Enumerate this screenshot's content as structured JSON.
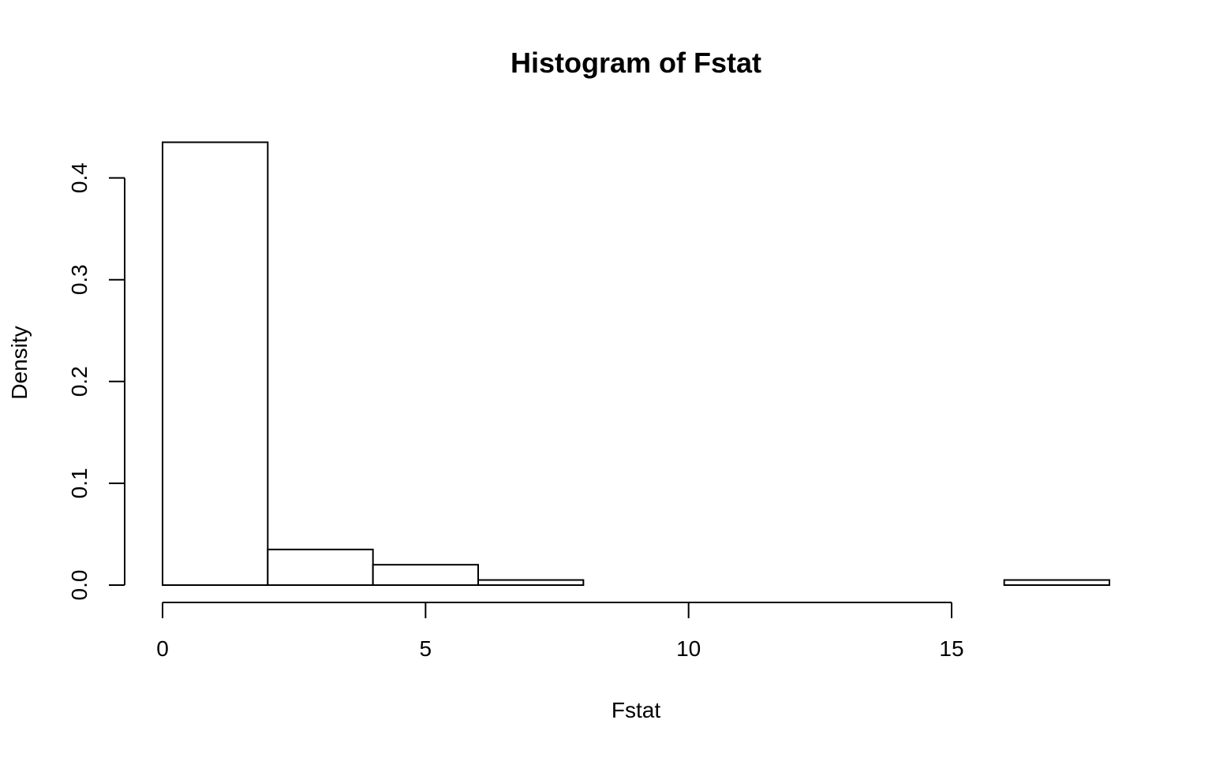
{
  "chart_data": {
    "type": "bar",
    "chart_kind": "histogram",
    "title": "Histogram of Fstat",
    "xlabel": "Fstat",
    "ylabel": "Density",
    "bins": [
      {
        "start": 0,
        "end": 2,
        "density": 0.435
      },
      {
        "start": 2,
        "end": 4,
        "density": 0.035
      },
      {
        "start": 4,
        "end": 6,
        "density": 0.02
      },
      {
        "start": 6,
        "end": 8,
        "density": 0.005
      },
      {
        "start": 8,
        "end": 10,
        "density": 0.0
      },
      {
        "start": 10,
        "end": 12,
        "density": 0.0
      },
      {
        "start": 12,
        "end": 14,
        "density": 0.0
      },
      {
        "start": 14,
        "end": 16,
        "density": 0.0
      },
      {
        "start": 16,
        "end": 18,
        "density": 0.005
      }
    ],
    "xlim": [
      0,
      18
    ],
    "ylim": [
      0,
      0.435
    ],
    "x_ticks": [
      0,
      5,
      10,
      15
    ],
    "x_tick_labels": [
      "0",
      "5",
      "10",
      "15"
    ],
    "y_ticks": [
      0.0,
      0.1,
      0.2,
      0.3,
      0.4
    ],
    "y_tick_labels": [
      "0.0",
      "0.1",
      "0.2",
      "0.3",
      "0.4"
    ],
    "grid": false,
    "legend": "none",
    "colors": {
      "bar_fill": "#ffffff",
      "bar_stroke": "#000000",
      "background": "#ffffff"
    }
  }
}
